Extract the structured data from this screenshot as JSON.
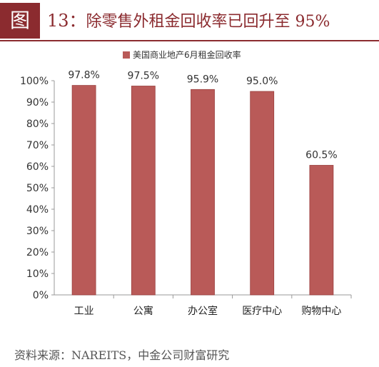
{
  "figure": {
    "label": "图",
    "number": "13：",
    "title": "除零售外租金回收率已回升至 95%"
  },
  "source": "资料来源：NAREITS，中金公司财富研究",
  "colors": {
    "bar": "#b95a58",
    "bar_edge": "#9a3f3e",
    "accent": "#8b2b2f"
  },
  "chart_data": {
    "type": "bar",
    "categories": [
      "工业",
      "公寓",
      "办公室",
      "医疗中心",
      "购物中心"
    ],
    "series": [
      {
        "name": "美国商业地产6月租金回收率",
        "values": [
          97.8,
          97.5,
          95.9,
          95.0,
          60.5
        ]
      }
    ],
    "data_labels": [
      "97.8%",
      "97.5%",
      "95.9%",
      "95.0%",
      "60.5%"
    ],
    "ylim": [
      0,
      100
    ],
    "yticks": [
      0,
      10,
      20,
      30,
      40,
      50,
      60,
      70,
      80,
      90,
      100
    ],
    "ytick_suffix": "%",
    "legend_position": "top-center",
    "grid": false
  }
}
